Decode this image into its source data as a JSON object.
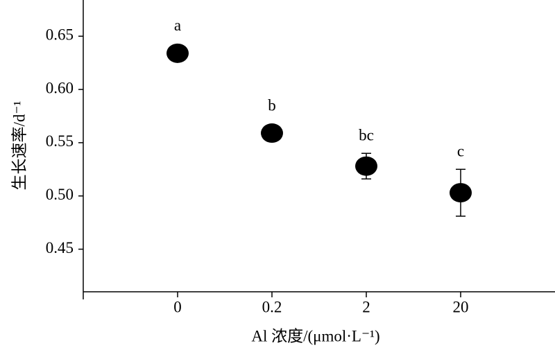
{
  "chart_data": {
    "type": "dot-errorbar",
    "y_label": "生长速率/d⁻¹",
    "x_label": "Al 浓度/(μmol·L⁻¹)",
    "categories": [
      "0",
      "0.2",
      "2",
      "20"
    ],
    "values": [
      0.634,
      0.559,
      0.528,
      0.503
    ],
    "errors": [
      0.002,
      0.003,
      0.012,
      0.022
    ],
    "annotations": [
      "a",
      "b",
      "bc",
      "c"
    ],
    "color": "#000000",
    "ylim": [
      0.41,
      0.684
    ],
    "yticks": [
      {
        "value": 0.45,
        "label": "0.45"
      },
      {
        "value": 0.5,
        "label": "0.50"
      },
      {
        "value": 0.55,
        "label": "0.55"
      },
      {
        "value": 0.6,
        "label": "0.60"
      },
      {
        "value": 0.65,
        "label": "0.65"
      }
    ]
  }
}
